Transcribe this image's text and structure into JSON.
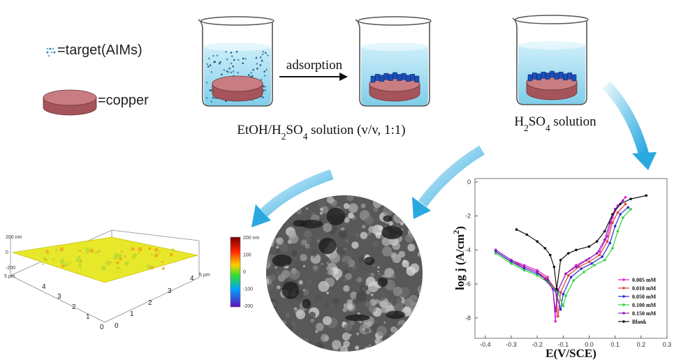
{
  "legend": {
    "target": "=target(AIMs)",
    "copper": "=copper"
  },
  "arrow_label": "adsorption",
  "captions": {
    "mixed": [
      {
        "text": "EtOH/H"
      },
      {
        "text": "2",
        "sub": true
      },
      {
        "text": "SO"
      },
      {
        "text": "4",
        "sub": true
      },
      {
        "text": " solution (v/v, 1:1)"
      }
    ],
    "acid": [
      {
        "text": "H"
      },
      {
        "text": "2",
        "sub": true
      },
      {
        "text": "SO"
      },
      {
        "text": "4",
        "sub": true
      },
      {
        "text": " solution"
      }
    ]
  },
  "afm": {
    "z_labels": [
      "200 nm",
      "0",
      "-200"
    ],
    "axis_unit": [
      "5 µm",
      "5 µm"
    ],
    "x_ticks": [
      "4",
      "3",
      "2",
      "1",
      "0"
    ],
    "y_ticks": [
      "4",
      "3",
      "2",
      "1",
      "0"
    ],
    "colorbar": [
      "200 nm",
      "100",
      "0",
      "-100",
      "-200"
    ]
  },
  "chart_data": {
    "type": "line",
    "xlabel": "E(V/SCE)",
    "ylabel": [
      {
        "text": "log j (A/cm"
      },
      {
        "text": "2",
        "sup": true
      },
      {
        "text": ")"
      }
    ],
    "xlim": [
      -0.44,
      0.3
    ],
    "ylim": [
      -9.2,
      0.2
    ],
    "xticks": [
      -0.4,
      -0.3,
      -0.2,
      -0.1,
      {
        "value": 0,
        "label": "0.0"
      },
      0.1,
      0.2,
      0.3
    ],
    "yticks": [
      0,
      -2,
      -4,
      -6,
      -8
    ],
    "legend": "lower right",
    "series": [
      {
        "name": "0.005 mM",
        "color": "#e020e0",
        "x": [
          -0.36,
          -0.3,
          -0.25,
          -0.2,
          -0.16,
          -0.14,
          -0.13,
          -0.12,
          -0.09,
          -0.05,
          0,
          0.04,
          0.07,
          0.09,
          0.11,
          0.14
        ],
        "values": [
          -4.0,
          -4.6,
          -4.9,
          -5.2,
          -5.6,
          -6.2,
          -8.2,
          -6.4,
          -5.4,
          -4.9,
          -4.5,
          -4.1,
          -3.2,
          -2.1,
          -1.4,
          -0.9
        ]
      },
      {
        "name": "0.010 mM",
        "color": "#e0403a",
        "x": [
          -0.36,
          -0.3,
          -0.25,
          -0.2,
          -0.16,
          -0.13,
          -0.12,
          -0.11,
          -0.08,
          -0.04,
          0,
          0.04,
          0.07,
          0.09,
          0.11,
          0.14
        ],
        "values": [
          -4.1,
          -4.7,
          -5.0,
          -5.3,
          -5.7,
          -6.3,
          -7.9,
          -6.5,
          -5.5,
          -5.0,
          -4.7,
          -4.3,
          -3.5,
          -2.4,
          -1.8,
          -1.3
        ]
      },
      {
        "name": "0.050 mM",
        "color": "#2030d0",
        "x": [
          -0.36,
          -0.3,
          -0.25,
          -0.2,
          -0.16,
          -0.13,
          -0.11,
          -0.1,
          -0.07,
          -0.03,
          0.01,
          0.05,
          0.08,
          0.1,
          0.12,
          0.15
        ],
        "values": [
          -4.1,
          -4.7,
          -5.1,
          -5.4,
          -5.8,
          -6.4,
          -7.5,
          -6.6,
          -5.6,
          -5.1,
          -4.8,
          -4.4,
          -3.6,
          -2.6,
          -1.9,
          -1.5
        ]
      },
      {
        "name": "0.100 mM",
        "color": "#30d040",
        "x": [
          -0.36,
          -0.3,
          -0.25,
          -0.2,
          -0.16,
          -0.12,
          -0.1,
          -0.09,
          -0.06,
          -0.02,
          0.02,
          0.06,
          0.09,
          0.11,
          0.13,
          0.16
        ],
        "values": [
          -4.2,
          -4.8,
          -5.2,
          -5.5,
          -5.9,
          -6.5,
          -7.3,
          -6.7,
          -5.8,
          -5.3,
          -4.9,
          -4.6,
          -3.9,
          -2.9,
          -2.1,
          -1.6
        ]
      },
      {
        "name": "0.150 mM",
        "color": "#9020b0",
        "x": [
          -0.36,
          -0.3,
          -0.25,
          -0.2,
          -0.17,
          -0.14,
          -0.13,
          -0.12,
          -0.09,
          -0.05,
          -0.01,
          0.03,
          0.06,
          0.08,
          0.1,
          0.13
        ],
        "values": [
          -4.0,
          -4.6,
          -5.0,
          -5.3,
          -5.7,
          -6.3,
          -7.6,
          -6.4,
          -5.4,
          -5.0,
          -4.6,
          -4.2,
          -3.4,
          -2.4,
          -1.6,
          -1.1
        ]
      },
      {
        "name": "Blank",
        "color": "#111111",
        "x": [
          -0.28,
          -0.24,
          -0.2,
          -0.17,
          -0.15,
          -0.135,
          -0.125,
          -0.11,
          -0.08,
          -0.05,
          0,
          0.03,
          0.06,
          0.09,
          0.12,
          0.16,
          0.22
        ],
        "values": [
          -2.8,
          -3.1,
          -3.5,
          -3.9,
          -4.3,
          -5.0,
          -6.3,
          -4.6,
          -4.2,
          -4.0,
          -3.8,
          -3.5,
          -2.9,
          -1.9,
          -1.3,
          -1.0,
          -0.8
        ]
      }
    ]
  }
}
